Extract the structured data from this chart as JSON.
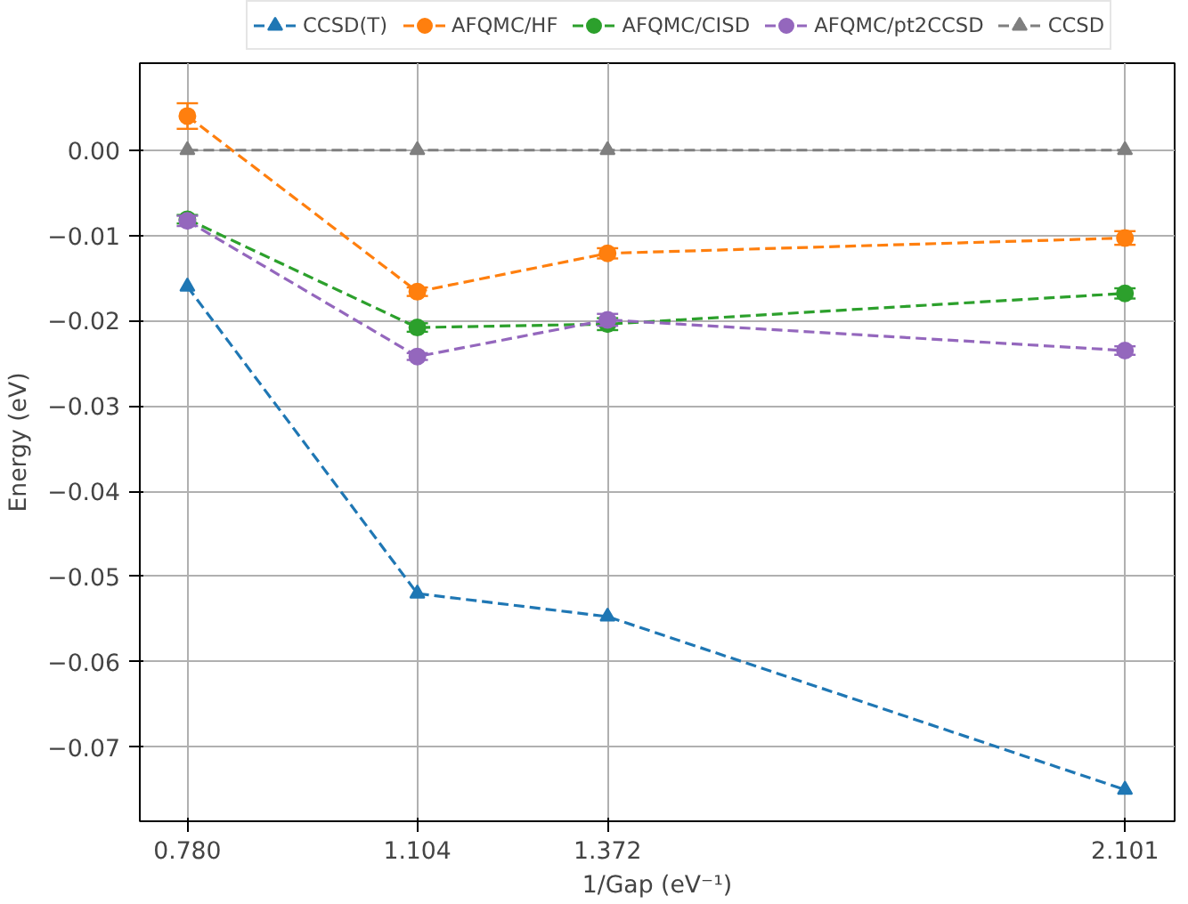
{
  "chart_data": {
    "type": "line",
    "xlabel": "1/Gap (eV⁻¹)",
    "ylabel": "Energy (eV)",
    "x": [
      0.78,
      1.104,
      1.372,
      2.101
    ],
    "xlim": [
      0.713,
      2.171
    ],
    "ylim": [
      -0.0787,
      0.0102
    ],
    "xticks": [
      {
        "value": 0.78,
        "label": "0.780"
      },
      {
        "value": 1.104,
        "label": "1.104"
      },
      {
        "value": 1.372,
        "label": "1.372"
      },
      {
        "value": 2.101,
        "label": "2.101"
      }
    ],
    "yticks": [
      {
        "value": 0,
        "label": "0.00"
      },
      {
        "value": -0.01,
        "label": "−0.01"
      },
      {
        "value": -0.02,
        "label": "−0.02"
      },
      {
        "value": -0.03,
        "label": "−0.03"
      },
      {
        "value": -0.04,
        "label": "−0.04"
      },
      {
        "value": -0.05,
        "label": "−0.05"
      },
      {
        "value": -0.06,
        "label": "−0.06"
      },
      {
        "value": -0.07,
        "label": "−0.07"
      }
    ],
    "grid": true,
    "legend": "top",
    "line_style": "dashed",
    "series": [
      {
        "name": "CCSD(T)",
        "color": "#1f77b4",
        "marker": "triangle",
        "values": [
          -0.016,
          -0.052,
          -0.0547,
          -0.075
        ]
      },
      {
        "name": "AFQMC/HF",
        "color": "#ff7f0e",
        "marker": "circle",
        "values": [
          0.004,
          -0.0166,
          -0.0121,
          -0.0103
        ],
        "errors": [
          0.0015,
          0.0005,
          0.0006,
          0.0008
        ]
      },
      {
        "name": "AFQMC/CISD",
        "color": "#2ca02c",
        "marker": "circle",
        "values": [
          -0.0081,
          -0.0208,
          -0.0204,
          -0.0168
        ],
        "errors": [
          0.0005,
          0.0005,
          0.0007,
          0.0006
        ]
      },
      {
        "name": "AFQMC/pt2CCSD",
        "color": "#9467bd",
        "marker": "circle",
        "values": [
          -0.0083,
          -0.0242,
          -0.0199,
          -0.0235
        ],
        "errors": [
          0.0006,
          0.0004,
          0.0007,
          0.0005
        ]
      },
      {
        "name": "CCSD",
        "color": "#7f7f7f",
        "marker": "triangle",
        "values": [
          0,
          0,
          0,
          0
        ]
      }
    ]
  }
}
